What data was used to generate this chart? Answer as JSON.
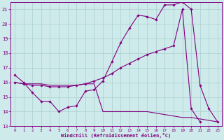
{
  "xlabel": "Windchill (Refroidissement éolien,°C)",
  "background_color": "#ceeaea",
  "grid_color": "#aacfcf",
  "line_color": "#800080",
  "xlim_min": -0.5,
  "xlim_max": 23.5,
  "ylim_min": 13,
  "ylim_max": 21.5,
  "xticks": [
    0,
    1,
    2,
    3,
    4,
    5,
    6,
    7,
    8,
    9,
    10,
    11,
    12,
    13,
    14,
    15,
    16,
    17,
    18,
    19,
    20,
    21,
    22,
    23
  ],
  "yticks": [
    13,
    14,
    15,
    16,
    17,
    18,
    19,
    20,
    21
  ],
  "series1_x": [
    0,
    1,
    2,
    3,
    4,
    5,
    6,
    7,
    8,
    9,
    10,
    11,
    12,
    13,
    14,
    15,
    16,
    17,
    18,
    19,
    20,
    21,
    22,
    23
  ],
  "series1_y": [
    16.5,
    16.0,
    15.3,
    14.7,
    14.7,
    14.0,
    14.3,
    14.4,
    15.4,
    15.5,
    16.1,
    17.4,
    18.7,
    19.7,
    20.6,
    20.5,
    20.3,
    21.3,
    21.3,
    21.5,
    21.0,
    15.8,
    14.2,
    13.3
  ],
  "series2_x": [
    0,
    1,
    2,
    3,
    4,
    5,
    6,
    7,
    8,
    9,
    10,
    11,
    12,
    13,
    14,
    15,
    16,
    17,
    18,
    19,
    20,
    21,
    22,
    23
  ],
  "series2_y": [
    16.0,
    15.9,
    15.8,
    15.8,
    15.7,
    15.7,
    15.7,
    15.8,
    15.9,
    16.1,
    16.3,
    16.6,
    17.0,
    17.3,
    17.6,
    17.9,
    18.1,
    18.3,
    18.5,
    21.0,
    14.2,
    13.3,
    null,
    null
  ],
  "series3_x": [
    0,
    1,
    2,
    3,
    4,
    5,
    6,
    7,
    8,
    9,
    10,
    11,
    12,
    13,
    14,
    15,
    16,
    17,
    18,
    19,
    20,
    21,
    22,
    23
  ],
  "series3_y": [
    16.0,
    15.9,
    15.9,
    15.9,
    15.8,
    15.8,
    15.8,
    15.8,
    15.9,
    15.9,
    14.0,
    14.0,
    14.0,
    14.0,
    14.0,
    14.0,
    13.9,
    13.8,
    13.7,
    13.6,
    13.6,
    13.5,
    13.4,
    13.3
  ],
  "marker_series1": [
    0,
    1,
    2,
    3,
    4,
    5,
    6,
    7,
    8,
    9,
    10,
    11,
    12,
    13,
    14,
    15,
    16,
    17,
    18,
    19,
    20,
    21,
    22,
    23
  ],
  "marker_series2": [
    0,
    1,
    2,
    3,
    4,
    5,
    6,
    7,
    8,
    9,
    10,
    11,
    12,
    13,
    14,
    15,
    16,
    17,
    18,
    19,
    20,
    21
  ],
  "marker_series3": []
}
